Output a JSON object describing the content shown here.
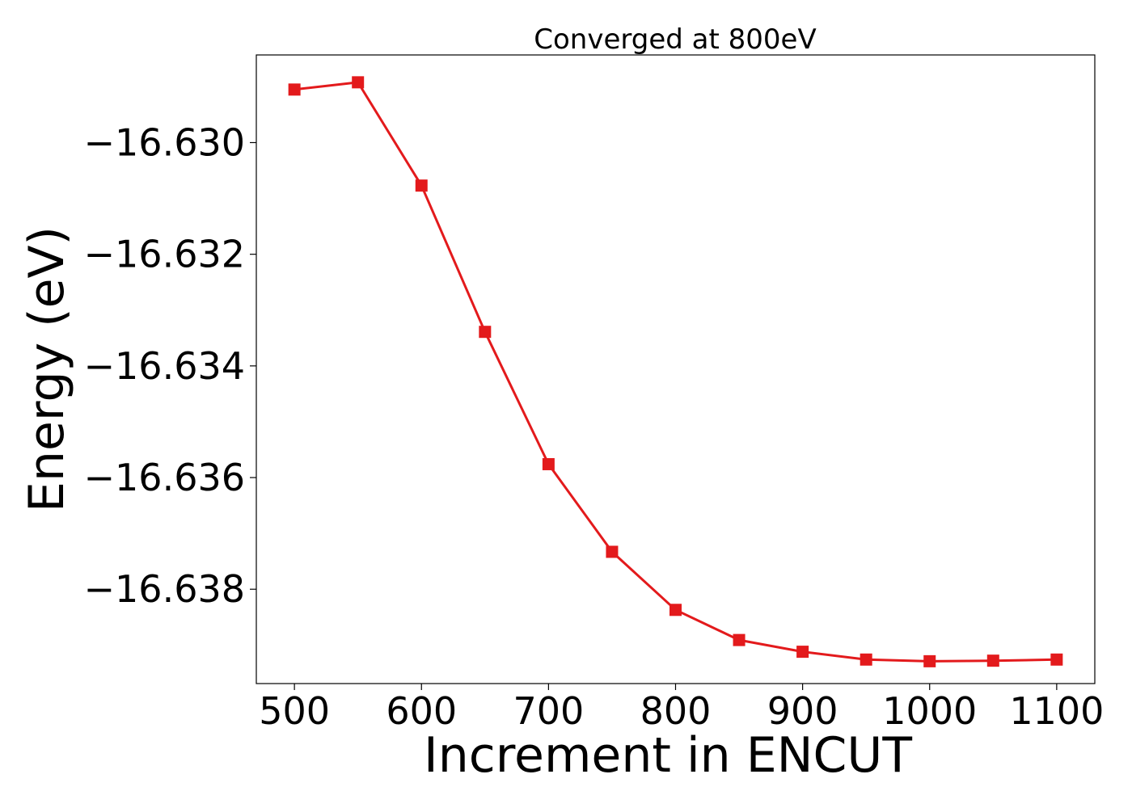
{
  "chart_data": {
    "type": "line",
    "title": "Converged at 800eV",
    "xlabel": "Increment in ENCUT",
    "ylabel": "Energy (eV)",
    "xlim": [
      470,
      1130
    ],
    "ylim": [
      -16.63969,
      -16.62843
    ],
    "x_ticks": [
      500,
      600,
      700,
      800,
      900,
      1000,
      1100
    ],
    "x_tick_labels": [
      "500",
      "600",
      "700",
      "800",
      "900",
      "1000",
      "1100"
    ],
    "y_ticks": [
      -16.63,
      -16.632,
      -16.634,
      -16.636,
      -16.638
    ],
    "y_tick_labels": [
      "−16.630",
      "−16.632",
      "−16.634",
      "−16.636",
      "−16.638"
    ],
    "grid": false,
    "legend": "none",
    "series": [
      {
        "color": "#e31a1c",
        "marker": "square",
        "x": [
          500,
          550,
          600,
          650,
          700,
          750,
          800,
          850,
          900,
          950,
          1000,
          1050,
          1100
        ],
        "y": [
          -16.62905,
          -16.62892,
          -16.63077,
          -16.63339,
          -16.63576,
          -16.63733,
          -16.63837,
          -16.63891,
          -16.63912,
          -16.63926,
          -16.63929,
          -16.63928,
          -16.63926
        ]
      }
    ]
  }
}
